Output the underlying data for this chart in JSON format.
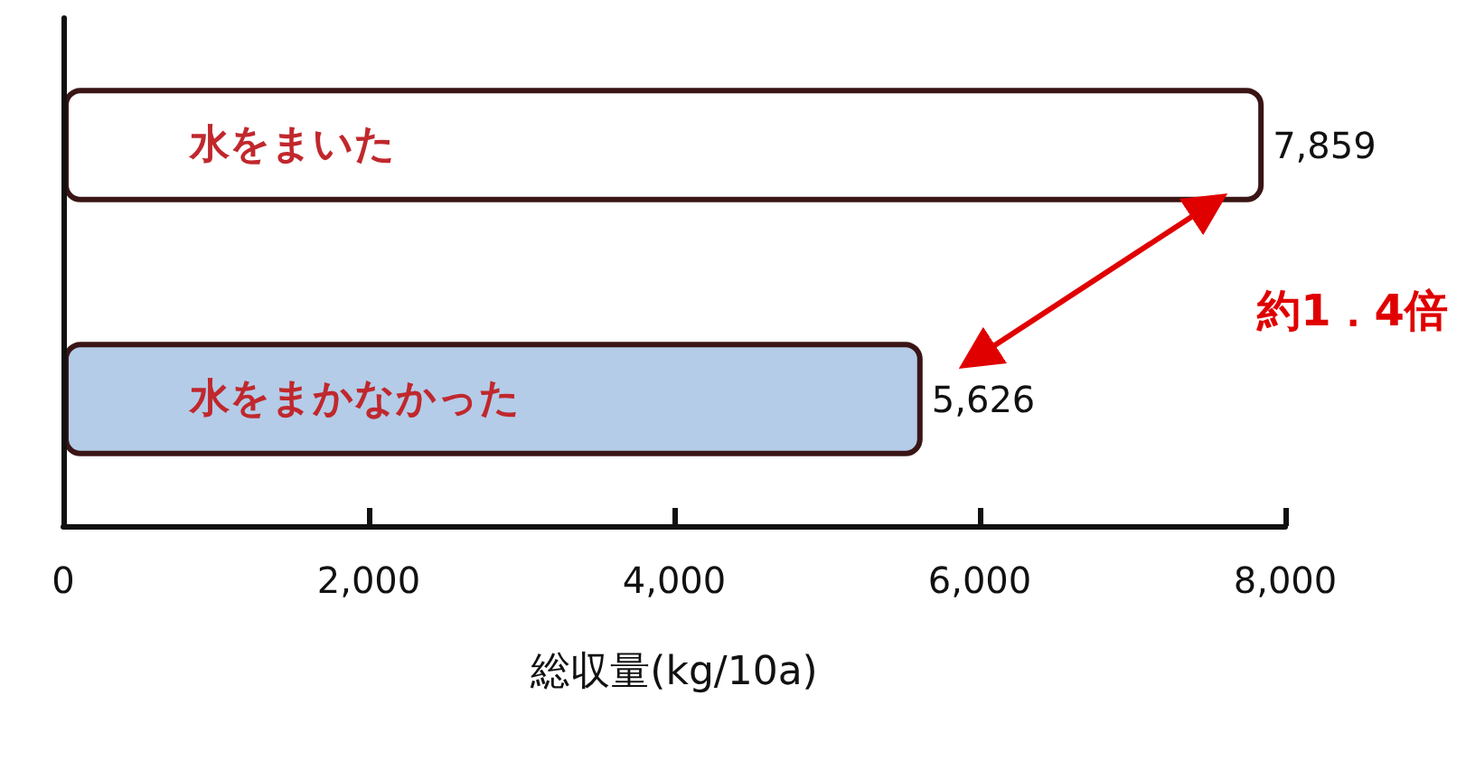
{
  "chart_data": {
    "type": "bar",
    "orientation": "horizontal",
    "categories": [
      "水をまいた",
      "水をまかなかった"
    ],
    "values": [
      7859,
      5626
    ],
    "colors": [
      "#ffffff",
      "#b4cce8"
    ],
    "value_labels": [
      "7,859",
      "5,626"
    ],
    "xlim": [
      0,
      8000
    ],
    "xticks": [
      0,
      {
        "value": 2000,
        "label": "2,000"
      },
      {
        "value": 4000,
        "label": "4,000"
      },
      {
        "value": 6000,
        "label": "6,000"
      },
      {
        "value": 8000,
        "label": "8,000"
      }
    ],
    "xlabel": "総収量(kg/10a)",
    "annotations": [
      "約1．4倍"
    ],
    "grid": false
  }
}
